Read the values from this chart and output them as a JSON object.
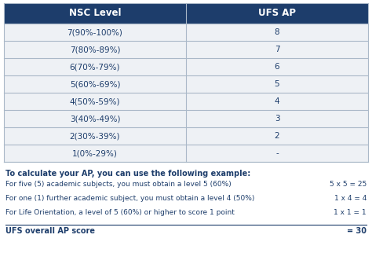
{
  "header": [
    "NSC Level",
    "UFS AP"
  ],
  "rows": [
    [
      "7(90%-100%)",
      "8"
    ],
    [
      "7(80%-89%)",
      "7"
    ],
    [
      "6(70%-79%)",
      "6"
    ],
    [
      "5(60%-69%)",
      "5"
    ],
    [
      "4(50%-59%)",
      "4"
    ],
    [
      "3(40%-49%)",
      "3"
    ],
    [
      "2(30%-39%)",
      "2"
    ],
    [
      "1(0%-29%)",
      "-"
    ]
  ],
  "header_bg": "#1d3d6b",
  "header_text_color": "#ffffff",
  "row_bg": "#eef1f5",
  "body_text_color": "#1d3d6b",
  "border_color": "#aab8c8",
  "note_title": "To calculate your AP, you can use the following example:",
  "note_lines": [
    [
      "For five (5) academic subjects, you must obtain a level 5 (60%)",
      "5 x 5 = 25"
    ],
    [
      "For one (1) further academic subject, you must obtain a level 4 (50%)",
      "1 x 4 = 4"
    ],
    [
      "For Life Orientation, a level of 5 (60%) or higher to score 1 point",
      "1 x 1 = 1"
    ]
  ],
  "total_label": "UFS overall AP score",
  "total_value": "= 30",
  "col_split": 0.5,
  "fig_width": 4.74,
  "fig_height": 3.36,
  "dpi": 100
}
